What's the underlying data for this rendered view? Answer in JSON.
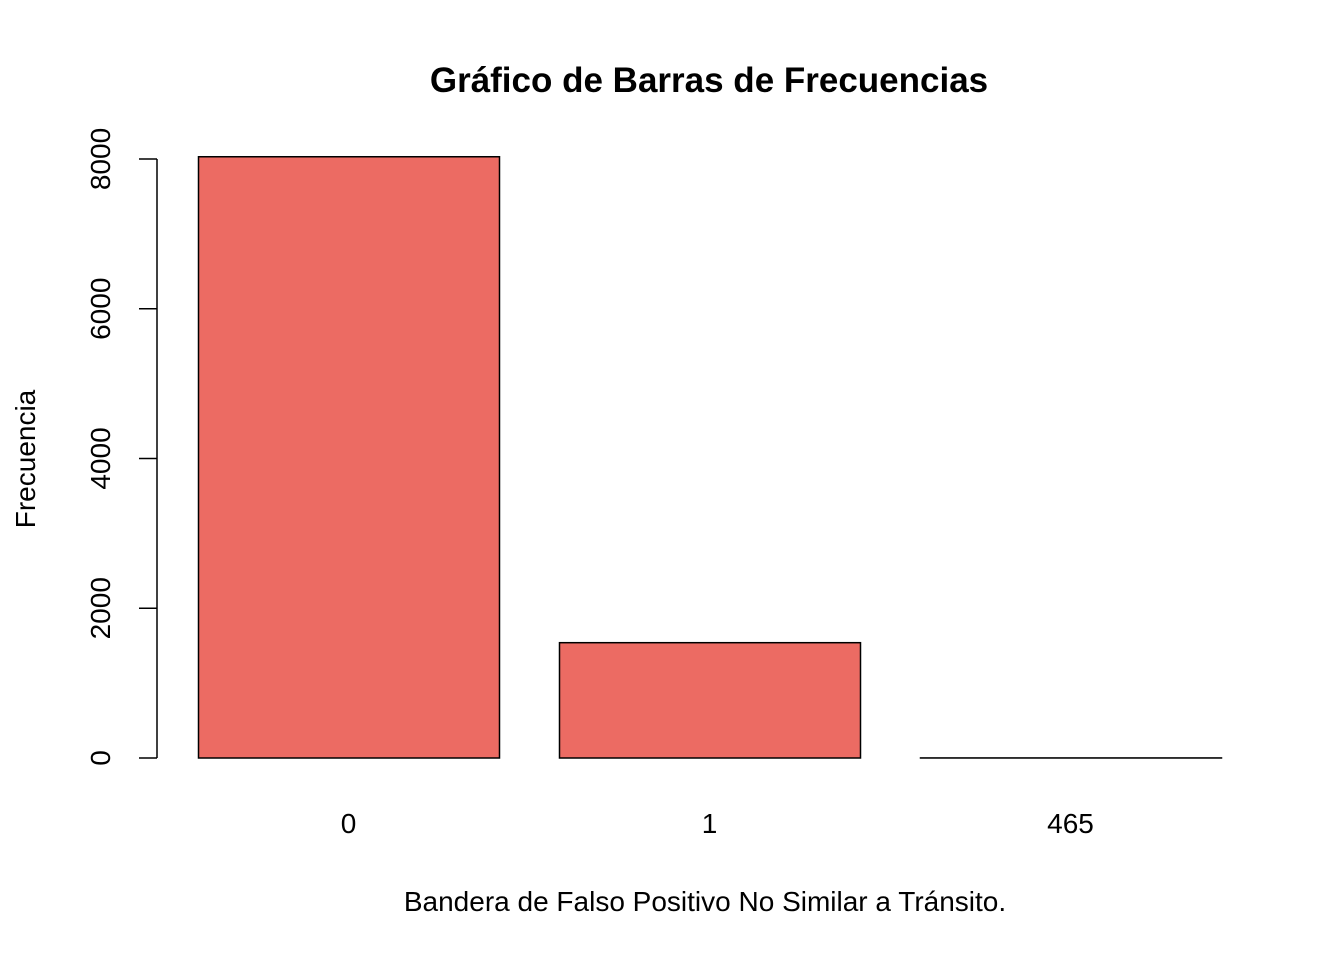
{
  "chart_data": {
    "type": "bar",
    "title": "Gráfico de Barras de Frecuencias",
    "xlabel": "Bandera de Falso Positivo No Similar a Tránsito.",
    "ylabel": "Frecuencia",
    "categories": [
      "0",
      "1",
      "465"
    ],
    "values": [
      8030,
      1540,
      1
    ],
    "ylim": [
      0,
      8000
    ],
    "yticks": [
      0,
      2000,
      4000,
      6000,
      8000
    ],
    "bar_color": "#EC6B63",
    "bar_border_color": "#000000",
    "grid": false,
    "legend": "none"
  }
}
